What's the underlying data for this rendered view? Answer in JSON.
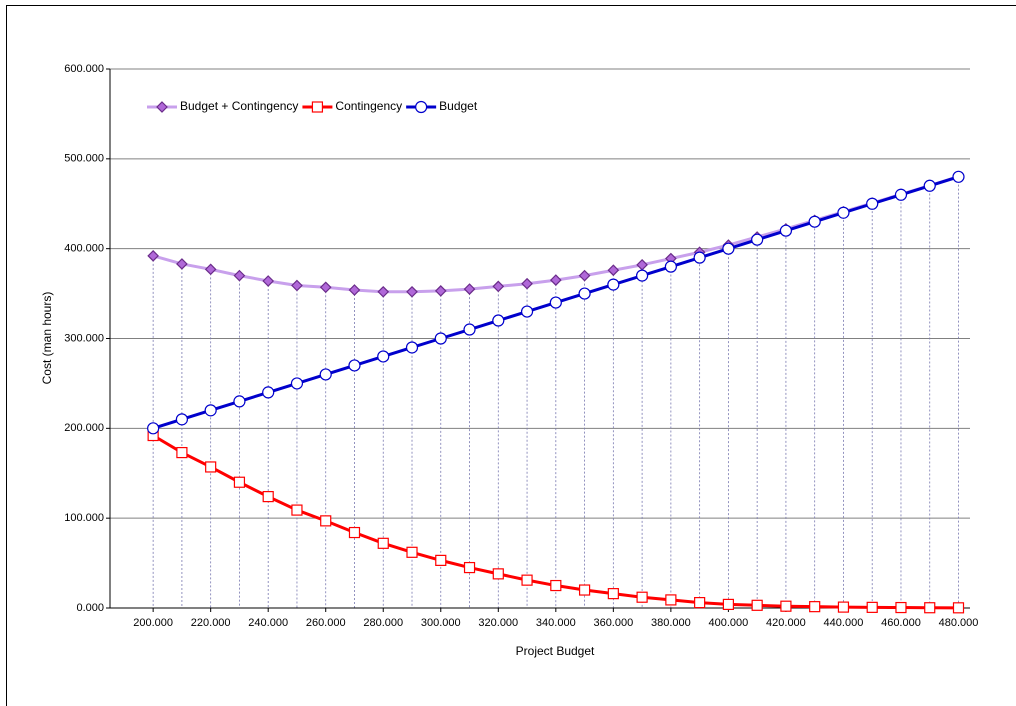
{
  "chart_data": {
    "type": "line",
    "x_label": "Project Budget",
    "y_label": "Cost (man hours)",
    "x": [
      200000,
      210000,
      220000,
      230000,
      240000,
      250000,
      260000,
      270000,
      280000,
      290000,
      300000,
      310000,
      320000,
      330000,
      340000,
      350000,
      360000,
      370000,
      380000,
      390000,
      400000,
      410000,
      420000,
      430000,
      440000,
      450000,
      460000,
      470000,
      480000
    ],
    "series": [
      {
        "name": "Budget + Contingency",
        "color": "#c8a0ec",
        "marker": "diamond",
        "marker_color": "#b068d8",
        "values": [
          392000,
          383000,
          377000,
          370000,
          364000,
          359000,
          357000,
          354000,
          352000,
          352000,
          353000,
          355000,
          358000,
          361000,
          365000,
          370000,
          376000,
          382000,
          389000,
          396000,
          404000,
          413000,
          422000,
          431500,
          441000,
          450700,
          460500,
          470300,
          480200
        ]
      },
      {
        "name": "Contingency",
        "color": "#ff0000",
        "marker": "square",
        "marker_color": "#ffffff",
        "values": [
          192000,
          173000,
          157000,
          140000,
          124000,
          109000,
          97000,
          84000,
          72000,
          62000,
          53000,
          45000,
          38000,
          31000,
          25000,
          20000,
          16000,
          12000,
          9000,
          6000,
          4000,
          3000,
          2000,
          1500,
          1000,
          700,
          500,
          300,
          200
        ]
      },
      {
        "name": "Budget",
        "color": "#0000cc",
        "marker": "circle",
        "marker_color": "#ffffff",
        "values": [
          200000,
          210000,
          220000,
          230000,
          240000,
          250000,
          260000,
          270000,
          280000,
          290000,
          300000,
          310000,
          320000,
          330000,
          340000,
          350000,
          360000,
          370000,
          380000,
          390000,
          400000,
          410000,
          420000,
          430000,
          440000,
          450000,
          460000,
          470000,
          480000
        ]
      }
    ],
    "xlim": [
      185000,
      484000
    ],
    "ylim": [
      0,
      600000
    ],
    "xticks": [
      {
        "value": 200000,
        "label": "200.000"
      },
      {
        "value": 220000,
        "label": "220.000"
      },
      {
        "value": 240000,
        "label": "240.000"
      },
      {
        "value": 260000,
        "label": "260.000"
      },
      {
        "value": 280000,
        "label": "280.000"
      },
      {
        "value": 300000,
        "label": "300.000"
      },
      {
        "value": 320000,
        "label": "320.000"
      },
      {
        "value": 340000,
        "label": "340.000"
      },
      {
        "value": 360000,
        "label": "360.000"
      },
      {
        "value": 380000,
        "label": "380.000"
      },
      {
        "value": 400000,
        "label": "400.000"
      },
      {
        "value": 420000,
        "label": "420.000"
      },
      {
        "value": 440000,
        "label": "440.000"
      },
      {
        "value": 460000,
        "label": "460.000"
      },
      {
        "value": 480000,
        "label": "480.000"
      }
    ],
    "yticks": [
      {
        "value": 0,
        "label": "0.000"
      },
      {
        "value": 100000,
        "label": "100.000"
      },
      {
        "value": 200000,
        "label": "200.000"
      },
      {
        "value": 300000,
        "label": "300.000"
      },
      {
        "value": 400000,
        "label": "400.000"
      },
      {
        "value": 500000,
        "label": "500.000"
      },
      {
        "value": 600000,
        "label": "600.000"
      }
    ],
    "grid": true,
    "drop_lines": true,
    "legend": "top-left"
  }
}
